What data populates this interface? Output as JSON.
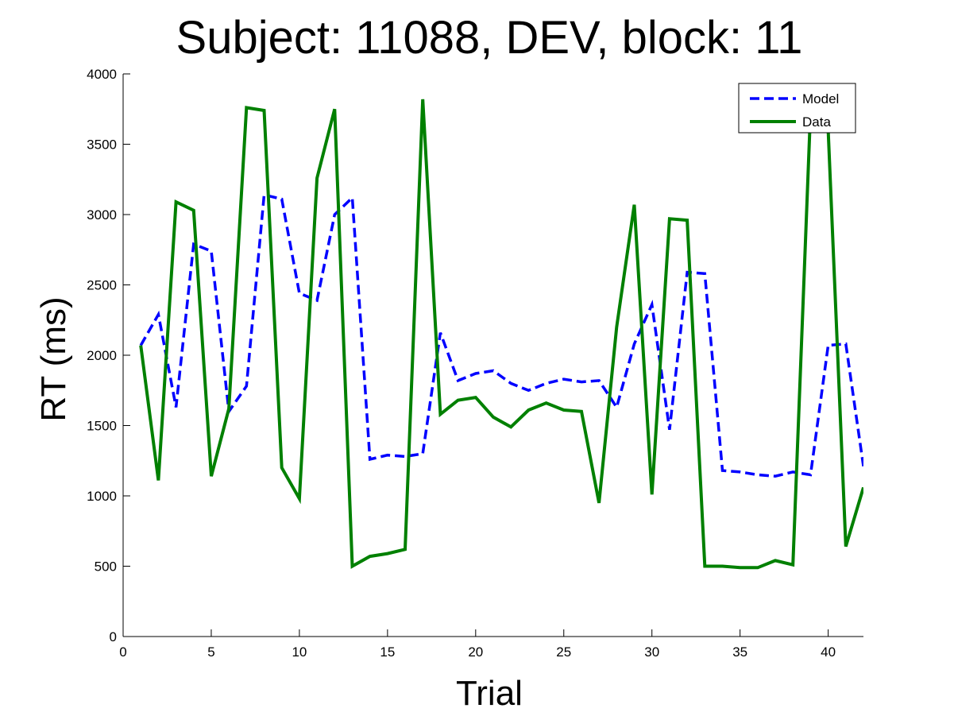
{
  "chart_data": {
    "type": "line",
    "title": "Subject: 11088, DEV, block: 11",
    "xlabel": "Trial",
    "ylabel": "RT (ms)",
    "xlim": [
      0,
      42
    ],
    "ylim": [
      0,
      4000
    ],
    "xticks": [
      0,
      5,
      10,
      15,
      20,
      25,
      30,
      35,
      40
    ],
    "yticks": [
      0,
      500,
      1000,
      1500,
      2000,
      2500,
      3000,
      3500,
      4000
    ],
    "grid": false,
    "legend_position": "top-right",
    "x": [
      1,
      2,
      3,
      4,
      5,
      6,
      7,
      8,
      9,
      10,
      11,
      12,
      13,
      14,
      15,
      16,
      17,
      18,
      19,
      20,
      21,
      22,
      23,
      24,
      25,
      26,
      27,
      28,
      29,
      30,
      31,
      32,
      33,
      34,
      35,
      36,
      37,
      38,
      39,
      40,
      41,
      42
    ],
    "series": [
      {
        "name": "Model",
        "color": "#0000ff",
        "style": "dashed",
        "values": [
          2070,
          2290,
          1630,
          2790,
          2740,
          1600,
          1780,
          3140,
          3110,
          2440,
          2390,
          3000,
          3120,
          1260,
          1290,
          1280,
          1300,
          2160,
          1820,
          1870,
          1890,
          1800,
          1750,
          1800,
          1830,
          1810,
          1820,
          1630,
          2080,
          2360,
          1470,
          2590,
          2580,
          1180,
          1170,
          1150,
          1140,
          1170,
          1150,
          2070,
          2080,
          1210
        ]
      },
      {
        "name": "Data",
        "color": "#008000",
        "style": "solid",
        "values": [
          2070,
          1110,
          3090,
          3030,
          1140,
          1620,
          3760,
          3740,
          1200,
          980,
          3260,
          3750,
          500,
          570,
          590,
          620,
          3820,
          1580,
          1680,
          1700,
          1560,
          1490,
          1610,
          1660,
          1610,
          1600,
          950,
          2200,
          3070,
          1010,
          2970,
          2960,
          500,
          500,
          490,
          490,
          540,
          510,
          3740,
          3600,
          640,
          1060
        ]
      }
    ]
  }
}
